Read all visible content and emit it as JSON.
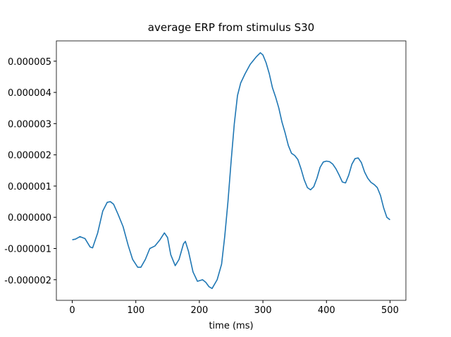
{
  "chart_data": {
    "type": "line",
    "title": "average ERP from stimulus S30",
    "xlabel": "time (ms)",
    "x": [
      0,
      5,
      12,
      20,
      28,
      32,
      40,
      48,
      55,
      60,
      65,
      72,
      80,
      88,
      95,
      103,
      108,
      115,
      122,
      130,
      138,
      145,
      150,
      155,
      162,
      168,
      175,
      178,
      183,
      190,
      197,
      205,
      210,
      215,
      220,
      228,
      235,
      240,
      245,
      250,
      255,
      260,
      265,
      272,
      280,
      290,
      296,
      300,
      305,
      310,
      315,
      320,
      325,
      330,
      335,
      340,
      345,
      350,
      355,
      360,
      365,
      370,
      375,
      380,
      385,
      390,
      395,
      400,
      405,
      410,
      415,
      420,
      425,
      430,
      435,
      440,
      445,
      450,
      455,
      460,
      465,
      470,
      475,
      480,
      485,
      490,
      495,
      500
    ],
    "series": [
      {
        "color": "#1f77b4",
        "values": [
          -7.2e-07,
          -7e-07,
          -6.2e-07,
          -6.8e-07,
          -9.5e-07,
          -9.8e-07,
          -5e-07,
          2e-07,
          4.8e-07,
          5e-07,
          4.2e-07,
          1e-07,
          -3e-07,
          -9e-07,
          -1.35e-06,
          -1.6e-06,
          -1.6e-06,
          -1.35e-06,
          -1e-06,
          -9.2e-07,
          -7.2e-07,
          -5e-07,
          -6.5e-07,
          -1.2e-06,
          -1.55e-06,
          -1.35e-06,
          -8.5e-07,
          -7.7e-07,
          -1.1e-06,
          -1.75e-06,
          -2.05e-06,
          -2e-06,
          -2.08e-06,
          -2.22e-06,
          -2.28e-06,
          -2e-06,
          -1.5e-06,
          -6e-07,
          5e-07,
          1.8e-06,
          3e-06,
          3.9e-06,
          4.3e-06,
          4.6e-06,
          4.9e-06,
          5.15e-06,
          5.27e-06,
          5.2e-06,
          4.95e-06,
          4.6e-06,
          4.15e-06,
          3.85e-06,
          3.5e-06,
          3.05e-06,
          2.7e-06,
          2.3e-06,
          2.05e-06,
          1.98e-06,
          1.85e-06,
          1.55e-06,
          1.2e-06,
          9.5e-07,
          8.8e-07,
          9.8e-07,
          1.25e-06,
          1.6e-06,
          1.77e-06,
          1.8e-06,
          1.78e-06,
          1.7e-06,
          1.55e-06,
          1.35e-06,
          1.13e-06,
          1.1e-06,
          1.35e-06,
          1.7e-06,
          1.88e-06,
          1.9e-06,
          1.75e-06,
          1.45e-06,
          1.25e-06,
          1.12e-06,
          1.05e-06,
          9.5e-07,
          7e-07,
          3e-07,
          0.0,
          -8e-08
        ]
      }
    ],
    "xlim": [
      -25,
      525
    ],
    "xticks": [
      0,
      100,
      200,
      300,
      400,
      500
    ],
    "ylim": [
      -2.66e-06,
      5.65e-06
    ],
    "yticks": [
      -2e-06,
      -1e-06,
      {
        "value": 0,
        "label": "0.000000"
      },
      1e-06,
      2e-06,
      3e-06,
      4e-06,
      5e-06
    ]
  }
}
